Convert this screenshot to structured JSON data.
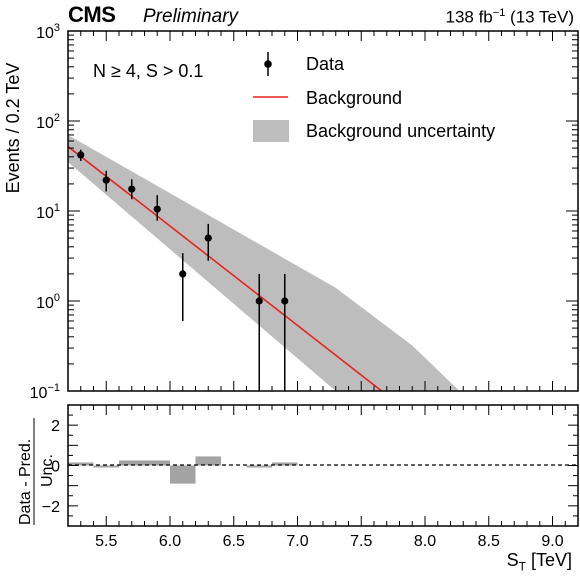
{
  "header": {
    "experiment": "CMS",
    "status": "Preliminary",
    "lumi_value": "138 fb",
    "lumi_exp": "−1",
    "lumi_energy": "(13 TeV)"
  },
  "selection": "N ≥ 4, S > 0.1",
  "legend": {
    "data": "Data",
    "background": "Background",
    "uncertainty": "Background uncertainty"
  },
  "axes": {
    "ylabel": "Events / 0.2 TeV",
    "xlabel_main": "S",
    "xlabel_sub": "T",
    "xlabel_unit": "[TeV]",
    "ratio_ylabel_num": "Data - Pred.",
    "ratio_ylabel_den": "Unc."
  },
  "colors": {
    "background_line": "#e8231f",
    "uncertainty_band": "#bdbdbd",
    "ratio_bars": "#a3a3a3",
    "data": "#000000"
  },
  "chart_data": [
    {
      "type": "scatter",
      "panel": "main",
      "xlim": [
        5.2,
        9.2
      ],
      "ylim": [
        0.1,
        1000
      ],
      "yscale": "log",
      "yticks": [
        {
          "value": 0.1,
          "base": "10",
          "exp": "−1"
        },
        {
          "value": 1,
          "base": "10",
          "exp": "0"
        },
        {
          "value": 10,
          "base": "10",
          "exp": "1"
        },
        {
          "value": 100,
          "base": "10",
          "exp": "2"
        },
        {
          "value": 1000,
          "base": "10",
          "exp": "3"
        }
      ],
      "xticks": [
        "5.5",
        "6.0",
        "6.5",
        "7.0",
        "7.5",
        "8.0",
        "8.5",
        "9.0"
      ],
      "series": [
        {
          "name": "Data",
          "x": [
            5.3,
            5.5,
            5.7,
            5.9,
            6.1,
            6.3,
            6.7,
            6.9
          ],
          "y": [
            42,
            22,
            17.5,
            10.5,
            2,
            5,
            1,
            1
          ],
          "y_low": [
            36,
            16.5,
            13.5,
            7.8,
            0.6,
            2.8,
            0.0,
            0.0
          ],
          "y_high": [
            48,
            28,
            22.5,
            15,
            3.4,
            7.2,
            2,
            2
          ]
        },
        {
          "name": "Background",
          "x": [
            5.2,
            7.66
          ],
          "y": [
            52,
            0.1
          ]
        },
        {
          "name": "Background uncertainty",
          "x": [
            5.2,
            7.3,
            7.9,
            8.27
          ],
          "y_low": [
            35,
            0.1,
            0.1,
            0.1
          ],
          "y_high": [
            70,
            1.4,
            0.32,
            0.1
          ]
        }
      ]
    },
    {
      "type": "bar",
      "panel": "ratio",
      "xlim": [
        5.2,
        9.2
      ],
      "ylim": [
        -3,
        3
      ],
      "yticks": [
        "−2",
        "0",
        "2"
      ],
      "bins": [
        {
          "x0": 5.2,
          "x1": 5.4,
          "value": 0.15
        },
        {
          "x0": 5.4,
          "x1": 5.6,
          "value": -0.1
        },
        {
          "x0": 5.6,
          "x1": 5.8,
          "value": 0.25
        },
        {
          "x0": 5.8,
          "x1": 6.0,
          "value": 0.25
        },
        {
          "x0": 6.0,
          "x1": 6.2,
          "value": -0.9
        },
        {
          "x0": 6.2,
          "x1": 6.4,
          "value": 0.45
        },
        {
          "x0": 6.6,
          "x1": 6.8,
          "value": -0.1
        },
        {
          "x0": 6.8,
          "x1": 7.0,
          "value": 0.15
        }
      ]
    }
  ]
}
